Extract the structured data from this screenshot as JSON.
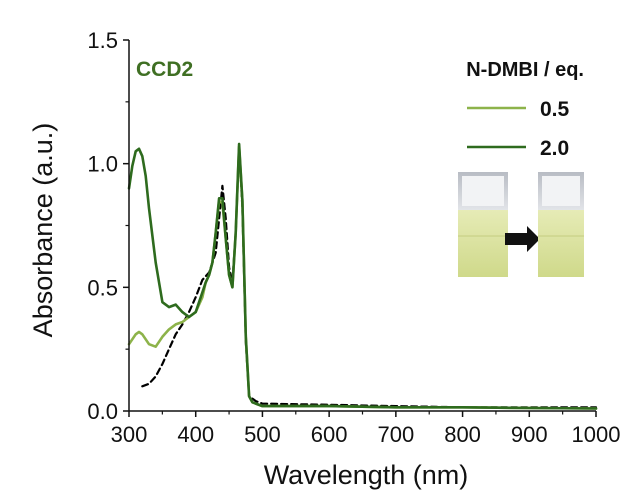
{
  "chart_data": {
    "type": "line",
    "sample_label": "CCD2",
    "xlabel": "Wavelength (nm)",
    "ylabel": "Absorbance (a.u.)",
    "xlim": [
      300,
      1000
    ],
    "ylim": [
      0,
      1.5
    ],
    "x_ticks": [
      "300",
      "400",
      "500",
      "600",
      "700",
      "800",
      "900",
      "1000"
    ],
    "y_ticks": [
      "0.0",
      "0.5",
      "1.0",
      "1.5"
    ],
    "legend_title": "N-DMBI / eq.",
    "legend_placement": "top-right",
    "grid": false,
    "colors": {
      "series_0_5": "#8db34a",
      "series_2_0": "#2e6b1e",
      "reference": "#000000",
      "sample_label": "#3f6f23"
    },
    "series": [
      {
        "name": "0.5",
        "style": "solid",
        "x": [
          300,
          305,
          310,
          315,
          320,
          325,
          330,
          340,
          350,
          360,
          370,
          380,
          390,
          400,
          410,
          415,
          420,
          425,
          430,
          435,
          440,
          445,
          450,
          455,
          460,
          465,
          470,
          475,
          480,
          485,
          490,
          500,
          600,
          700,
          800,
          900,
          1000
        ],
        "y": [
          0.27,
          0.29,
          0.31,
          0.32,
          0.31,
          0.29,
          0.27,
          0.26,
          0.3,
          0.33,
          0.35,
          0.36,
          0.38,
          0.4,
          0.46,
          0.52,
          0.55,
          0.6,
          0.72,
          0.85,
          0.84,
          0.7,
          0.55,
          0.5,
          0.72,
          1.07,
          0.85,
          0.3,
          0.06,
          0.035,
          0.03,
          0.02,
          0.02,
          0.015,
          0.015,
          0.012,
          0.01
        ]
      },
      {
        "name": "2.0",
        "style": "solid",
        "x": [
          300,
          305,
          310,
          315,
          320,
          325,
          330,
          340,
          350,
          360,
          370,
          380,
          390,
          400,
          410,
          415,
          420,
          425,
          430,
          435,
          440,
          445,
          450,
          455,
          460,
          465,
          470,
          475,
          480,
          485,
          490,
          500,
          600,
          700,
          800,
          900,
          1000
        ],
        "y": [
          0.9,
          0.99,
          1.05,
          1.06,
          1.03,
          0.95,
          0.82,
          0.6,
          0.44,
          0.42,
          0.43,
          0.4,
          0.38,
          0.4,
          0.48,
          0.52,
          0.55,
          0.6,
          0.72,
          0.86,
          0.86,
          0.7,
          0.55,
          0.5,
          0.72,
          1.08,
          0.85,
          0.3,
          0.06,
          0.035,
          0.03,
          0.02,
          0.02,
          0.015,
          0.015,
          0.012,
          0.01
        ]
      },
      {
        "name": "",
        "style": "dashed",
        "x": [
          320,
          330,
          340,
          350,
          360,
          370,
          380,
          390,
          400,
          410,
          420,
          430,
          440,
          445,
          450,
          455,
          460,
          465,
          470,
          475,
          480,
          490,
          500,
          600,
          700,
          800,
          900,
          1000
        ],
        "y": [
          0.1,
          0.11,
          0.14,
          0.19,
          0.25,
          0.31,
          0.35,
          0.4,
          0.46,
          0.53,
          0.56,
          0.64,
          0.91,
          0.78,
          0.58,
          0.52,
          0.72,
          1.07,
          0.82,
          0.28,
          0.06,
          0.04,
          0.03,
          0.025,
          0.02,
          0.015,
          0.015,
          0.015
        ]
      }
    ]
  }
}
